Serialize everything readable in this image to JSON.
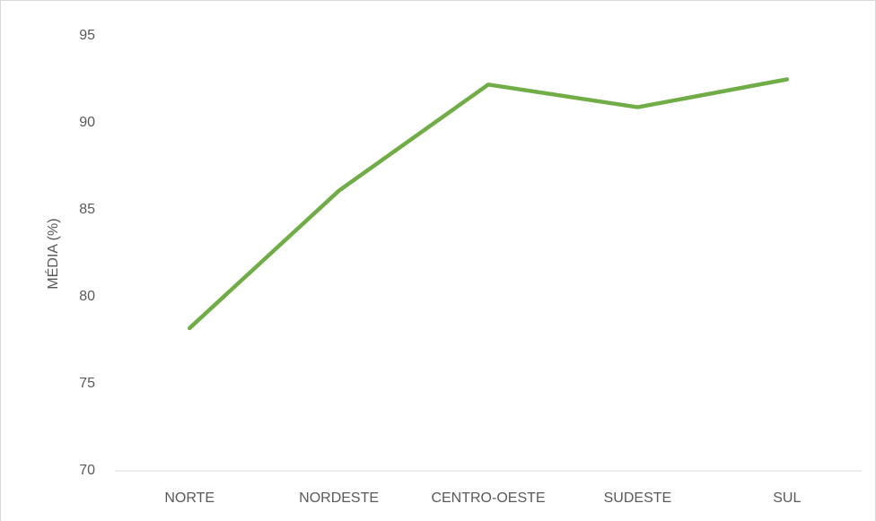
{
  "chart_data": {
    "type": "line",
    "y_label": "MÉDIA (%)",
    "categories": [
      "NORTE",
      "NORDESTE",
      "CENTRO-OESTE",
      "SUDESTE",
      "SUL"
    ],
    "values": [
      78.2,
      86.1,
      92.2,
      90.9,
      92.5
    ],
    "color": "#70ad47",
    "ylim": [
      70,
      95
    ],
    "yticks": [
      70,
      75,
      80,
      85,
      90,
      95
    ],
    "grid": false
  }
}
